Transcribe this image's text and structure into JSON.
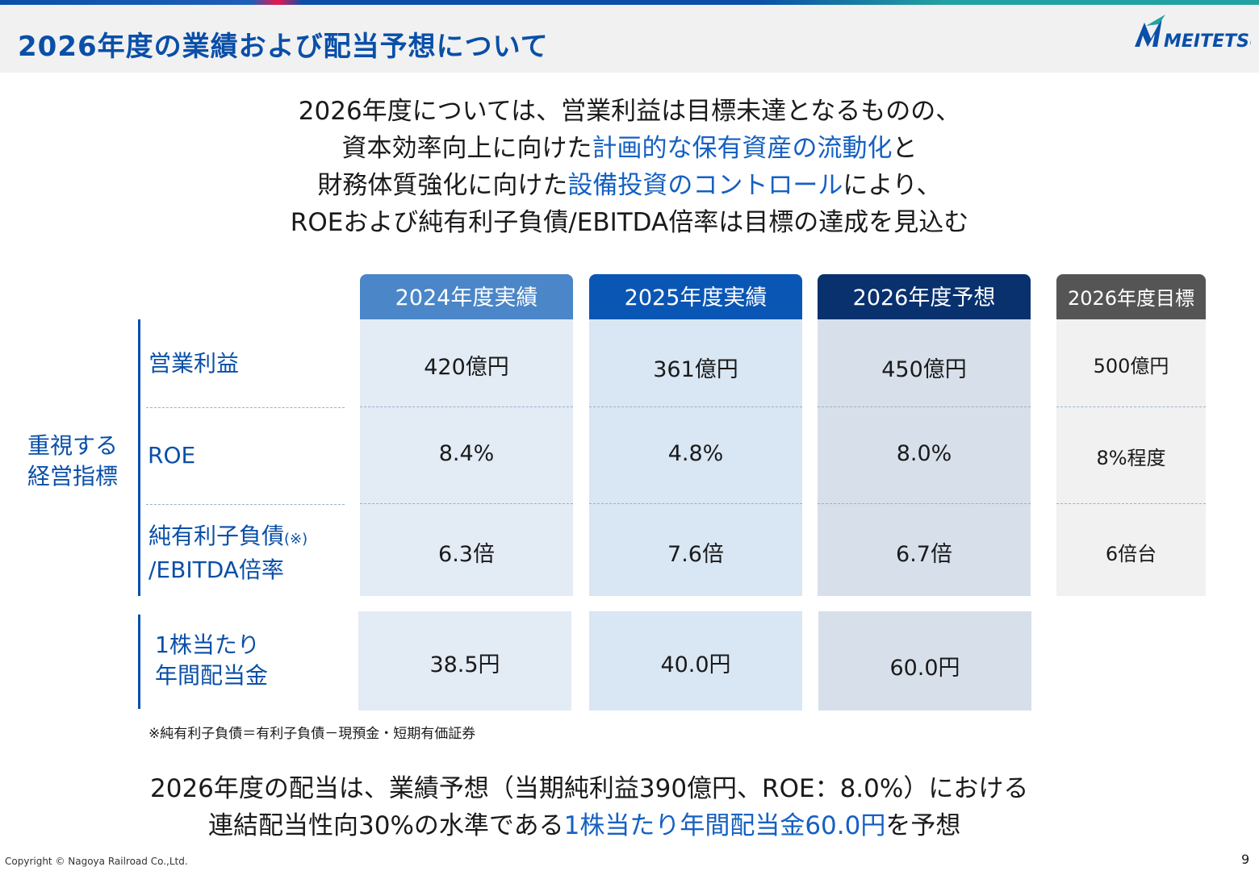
{
  "header": {
    "title": "2026年度の業績および配当予想について",
    "logo_text": "MEITETSU"
  },
  "summary": {
    "line1": "2026年度については、営業利益は目標未達となるものの、",
    "line2_pre": "資本効率向上に向けた",
    "line2_hl": "計画的な保有資産の流動化",
    "line2_post": "と",
    "line3_pre": "財務体質強化に向けた",
    "line3_hl": "設備投資のコントロール",
    "line3_post": "により、",
    "line4": "ROEおよび純有利子負債/EBITDA倍率は目標の達成を見込む"
  },
  "table": {
    "group_label_line1": "重視する",
    "group_label_line2": "経営指標",
    "rows": [
      {
        "label": "営業利益"
      },
      {
        "label": "ROE"
      },
      {
        "label_line1": "純有利子負債",
        "label_note": "(※)",
        "label_line2": "/EBITDA倍率"
      }
    ],
    "dividend_label_line1": "1株当たり",
    "dividend_label_line2": "年間配当金",
    "columns": [
      {
        "header": "2024年度実績",
        "color": "#4a86c8",
        "body_color": "#e3ebf5",
        "values": [
          "420億円",
          "8.4%",
          "6.3倍"
        ],
        "dividend": "38.5円"
      },
      {
        "header": "2025年度実績",
        "color": "#0a56b5",
        "body_color": "#d9e6f3",
        "values": [
          "361億円",
          "4.8%",
          "7.6倍"
        ],
        "dividend": "40.0円"
      },
      {
        "header": "2026年度予想",
        "color": "#08316e",
        "body_color": "#d7e0ea",
        "values": [
          "450億円",
          "8.0%",
          "6.7倍"
        ],
        "dividend": "60.0円"
      },
      {
        "header": "2026年度目標",
        "color": "#555555",
        "body_color": "#f1f1f1",
        "values": [
          "500億円",
          "8%程度",
          "6倍台"
        ]
      }
    ]
  },
  "footnote": "※純有利子負債＝有利子負債－現預金・短期有価証券",
  "bottom": {
    "line1": "2026年度の配当は、業績予想（当期純利益390億円、ROE：8.0%）における",
    "line2_pre": "連結配当性向30%の水準である",
    "line2_hl": "1株当たり年間配当金60.0円",
    "line2_post": "を予想"
  },
  "footer": {
    "copyright": "Copyright © Nagoya Railroad Co.,Ltd.",
    "page_number": "9"
  }
}
